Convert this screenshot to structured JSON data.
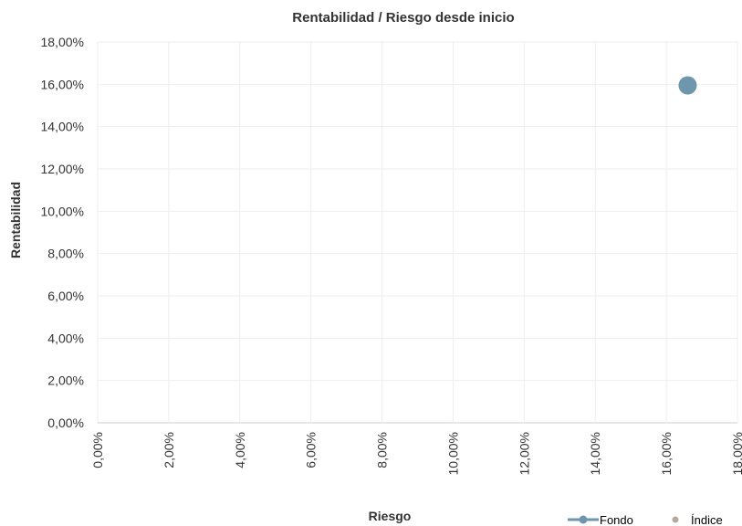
{
  "chart_data": {
    "type": "scatter",
    "title": "Rentabilidad / Riesgo desde inicio",
    "xlabel": "Riesgo",
    "ylabel": "Rentabilidad",
    "xlim": [
      0,
      18
    ],
    "ylim": [
      0,
      18
    ],
    "x_ticks": [
      "0,00%",
      "2,00%",
      "4,00%",
      "6,00%",
      "8,00%",
      "10,00%",
      "12,00%",
      "14,00%",
      "16,00%",
      "18,00%"
    ],
    "y_ticks": [
      "0,00%",
      "2,00%",
      "4,00%",
      "6,00%",
      "8,00%",
      "10,00%",
      "12,00%",
      "14,00%",
      "16,00%",
      "18,00%"
    ],
    "grid": true,
    "legend_position": "bottom-right",
    "series": [
      {
        "name": "Fondo",
        "color": "#6e97ad",
        "points": [
          {
            "x": 16.6,
            "y": 15.95
          }
        ]
      },
      {
        "name": "Índice",
        "color": "#b6a89c",
        "points": []
      }
    ]
  }
}
